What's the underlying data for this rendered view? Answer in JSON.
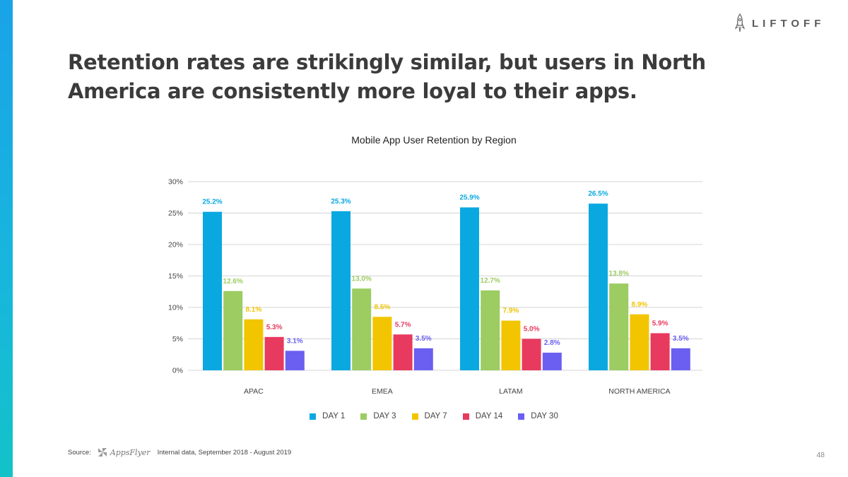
{
  "brand": {
    "logo_text": "LIFTOFF",
    "accent": "#1aa3e8"
  },
  "headline": "Retention rates are strikingly similar, but users in North America are consistently more loyal to their apps.",
  "footer": {
    "source_label": "Source:",
    "source_brand": "AppsFlyer",
    "source_text": "Internal data, September 2018 - August 2019"
  },
  "page_number": "48",
  "chart_data": {
    "type": "bar",
    "title": "Mobile App User Retention by Region",
    "categories": [
      "APAC",
      "EMEA",
      "LATAM",
      "NORTH AMERICA"
    ],
    "series": [
      {
        "name": "DAY 1",
        "color": "#0aa8e0",
        "values": [
          25.2,
          25.3,
          25.9,
          26.5
        ],
        "labels": [
          "25.2%",
          "25.3%",
          "25.9%",
          "26.5%"
        ]
      },
      {
        "name": "DAY 3",
        "color": "#9ccc62",
        "values": [
          12.6,
          13.0,
          12.7,
          13.8
        ],
        "labels": [
          "12.6%",
          "13.0%",
          "12.7%",
          "13.8%"
        ]
      },
      {
        "name": "DAY 7",
        "color": "#f2c500",
        "values": [
          8.1,
          8.5,
          7.9,
          8.9
        ],
        "labels": [
          "8.1%",
          "8.5%",
          "7.9%",
          "8.9%"
        ]
      },
      {
        "name": "DAY 14",
        "color": "#e8395f",
        "values": [
          5.3,
          5.7,
          5.0,
          5.9
        ],
        "labels": [
          "5.3%",
          "5.7%",
          "5.0%",
          "5.9%"
        ]
      },
      {
        "name": "DAY 30",
        "color": "#6a5ff0",
        "values": [
          3.1,
          3.5,
          2.8,
          3.5
        ],
        "labels": [
          "3.1%",
          "3.5%",
          "2.8%",
          "3.5%"
        ]
      }
    ],
    "ylim": [
      0,
      30
    ],
    "yticks": [
      "0%",
      "5%",
      "10%",
      "15%",
      "20%",
      "25%",
      "30%"
    ],
    "ytick_values": [
      0,
      5,
      10,
      15,
      20,
      25,
      30
    ],
    "grid": true,
    "legend_position": "bottom",
    "xlabel": "",
    "ylabel": ""
  }
}
